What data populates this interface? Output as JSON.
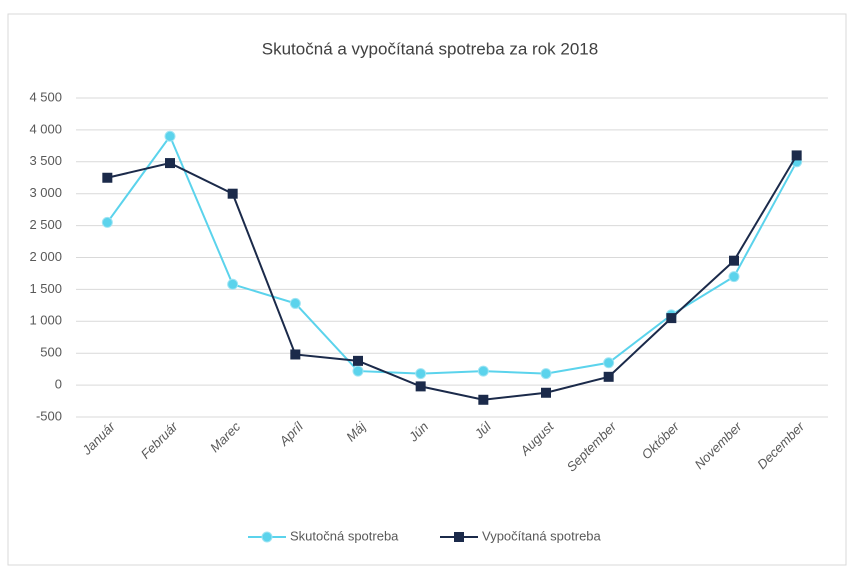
{
  "chart_data": {
    "type": "line",
    "title": "Skutočná a vypočítaná spotreba za rok 2018",
    "categories": [
      "Január",
      "Február",
      "Marec",
      "Apríl",
      "Máj",
      "Jún",
      "Júl",
      "August",
      "September",
      "Október",
      "November",
      "December"
    ],
    "series": [
      {
        "name": "Skutočná spotreba",
        "color": "#5bd3ec",
        "values": [
          2550,
          3900,
          1580,
          1280,
          220,
          180,
          220,
          180,
          350,
          1100,
          1700,
          3500
        ]
      },
      {
        "name": "Vypočítaná spotreba",
        "color": "#1b2a4a",
        "values": [
          3250,
          3480,
          3000,
          480,
          380,
          -20,
          -230,
          -120,
          130,
          1050,
          1950,
          3600
        ]
      }
    ],
    "ylim": [
      -500,
      4500
    ],
    "yticks": [
      -500,
      0,
      500,
      {
        "value": 1000,
        "label": "1 000"
      },
      {
        "value": 1500,
        "label": "1 500"
      },
      {
        "value": 2000,
        "label": "2 000"
      },
      {
        "value": 2500,
        "label": "2 500"
      },
      {
        "value": 3000,
        "label": "3 000"
      },
      {
        "value": 3500,
        "label": "3 500"
      },
      {
        "value": 4000,
        "label": "4 000"
      },
      {
        "value": 4500,
        "label": "4 500"
      }
    ],
    "grid": true,
    "legend": "bottom"
  }
}
